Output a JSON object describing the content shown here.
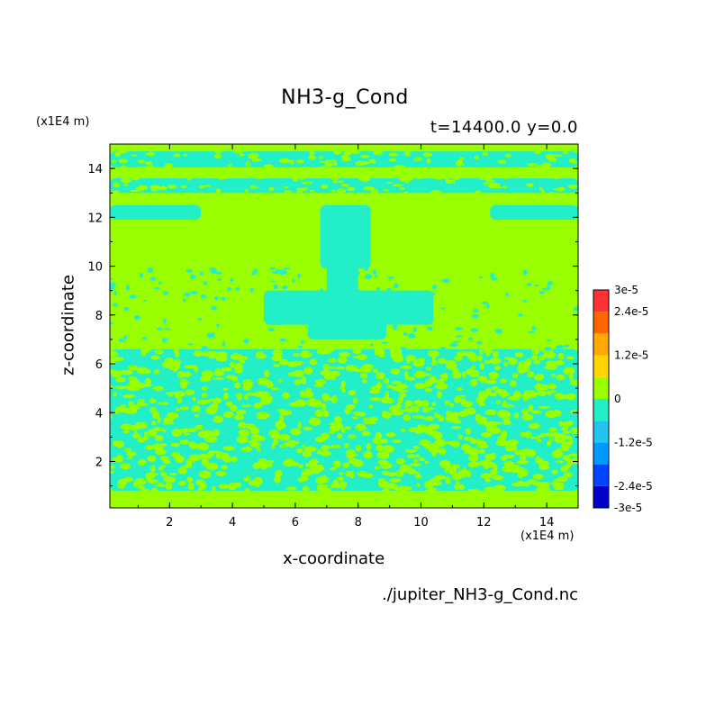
{
  "chart_data": {
    "type": "heatmap",
    "title": "NH3-g_Cond",
    "subtitle": "t=14400.0 y=0.0",
    "xlabel": "x-coordinate",
    "ylabel": "z-coordinate",
    "x_unit": "(x1E4 m)",
    "z_unit": "(x1E4 m)",
    "source_file": "./jupiter_NH3-g_Cond.nc",
    "xlim": [
      0.1,
      15
    ],
    "ylim": [
      0.1,
      15
    ],
    "x_ticks": [
      "2",
      "4",
      "6",
      "8",
      "10",
      "12",
      "14"
    ],
    "y_ticks": [
      "2",
      "4",
      "6",
      "8",
      "10",
      "12",
      "14"
    ],
    "x_tick_values": [
      2,
      4,
      6,
      8,
      10,
      12,
      14
    ],
    "y_tick_values": [
      2,
      4,
      6,
      8,
      10,
      12,
      14
    ],
    "colorbar": {
      "levels": [
        -3e-05,
        -2.4e-05,
        -1.8e-05,
        -1.2e-05,
        -6e-06,
        0,
        6e-06,
        1.2e-05,
        1.8e-05,
        2.4e-05,
        3e-05
      ],
      "colors": [
        "#0000c8",
        "#0044ff",
        "#0099ff",
        "#22c4f0",
        "#22eec8",
        "#99ff00",
        "#ffd700",
        "#ffaa00",
        "#ff6600",
        "#ff3333"
      ],
      "labels": [
        {
          "value": 3e-05,
          "text": "3e-5"
        },
        {
          "value": 2.4e-05,
          "text": "2.4e-5"
        },
        {
          "value": 1.2e-05,
          "text": "1.2e-5"
        },
        {
          "value": 0,
          "text": "0"
        },
        {
          "value": -1.2e-05,
          "text": "-1.2e-5"
        },
        {
          "value": -2.4e-05,
          "text": "-2.4e-5"
        },
        {
          "value": -3e-05,
          "text": "-3e-5"
        }
      ]
    },
    "fill_colors": {
      "positive_small": "#99ff00",
      "negative_small": "#22eec8"
    },
    "regions_negative": [
      {
        "x0": 0.1,
        "x1": 15,
        "y0": 14.05,
        "y1": 14.7
      },
      {
        "x0": 0.1,
        "x1": 15,
        "y0": 13.0,
        "y1": 13.6
      },
      {
        "x0": 0.1,
        "x1": 3.0,
        "y0": 11.9,
        "y1": 12.5
      },
      {
        "x0": 12.2,
        "x1": 15,
        "y0": 11.9,
        "y1": 12.5
      },
      {
        "x0": 6.8,
        "x1": 8.4,
        "y0": 9.9,
        "y1": 12.5
      },
      {
        "x0": 7.0,
        "x1": 8.0,
        "y0": 8.8,
        "y1": 10.2
      },
      {
        "x0": 5.0,
        "x1": 10.4,
        "y0": 7.6,
        "y1": 9.0
      },
      {
        "x0": 6.4,
        "x1": 8.9,
        "y0": 7.0,
        "y1": 8.2
      },
      {
        "x0": 0.1,
        "x1": 15,
        "y0": 0.8,
        "y1": 6.6
      }
    ]
  }
}
